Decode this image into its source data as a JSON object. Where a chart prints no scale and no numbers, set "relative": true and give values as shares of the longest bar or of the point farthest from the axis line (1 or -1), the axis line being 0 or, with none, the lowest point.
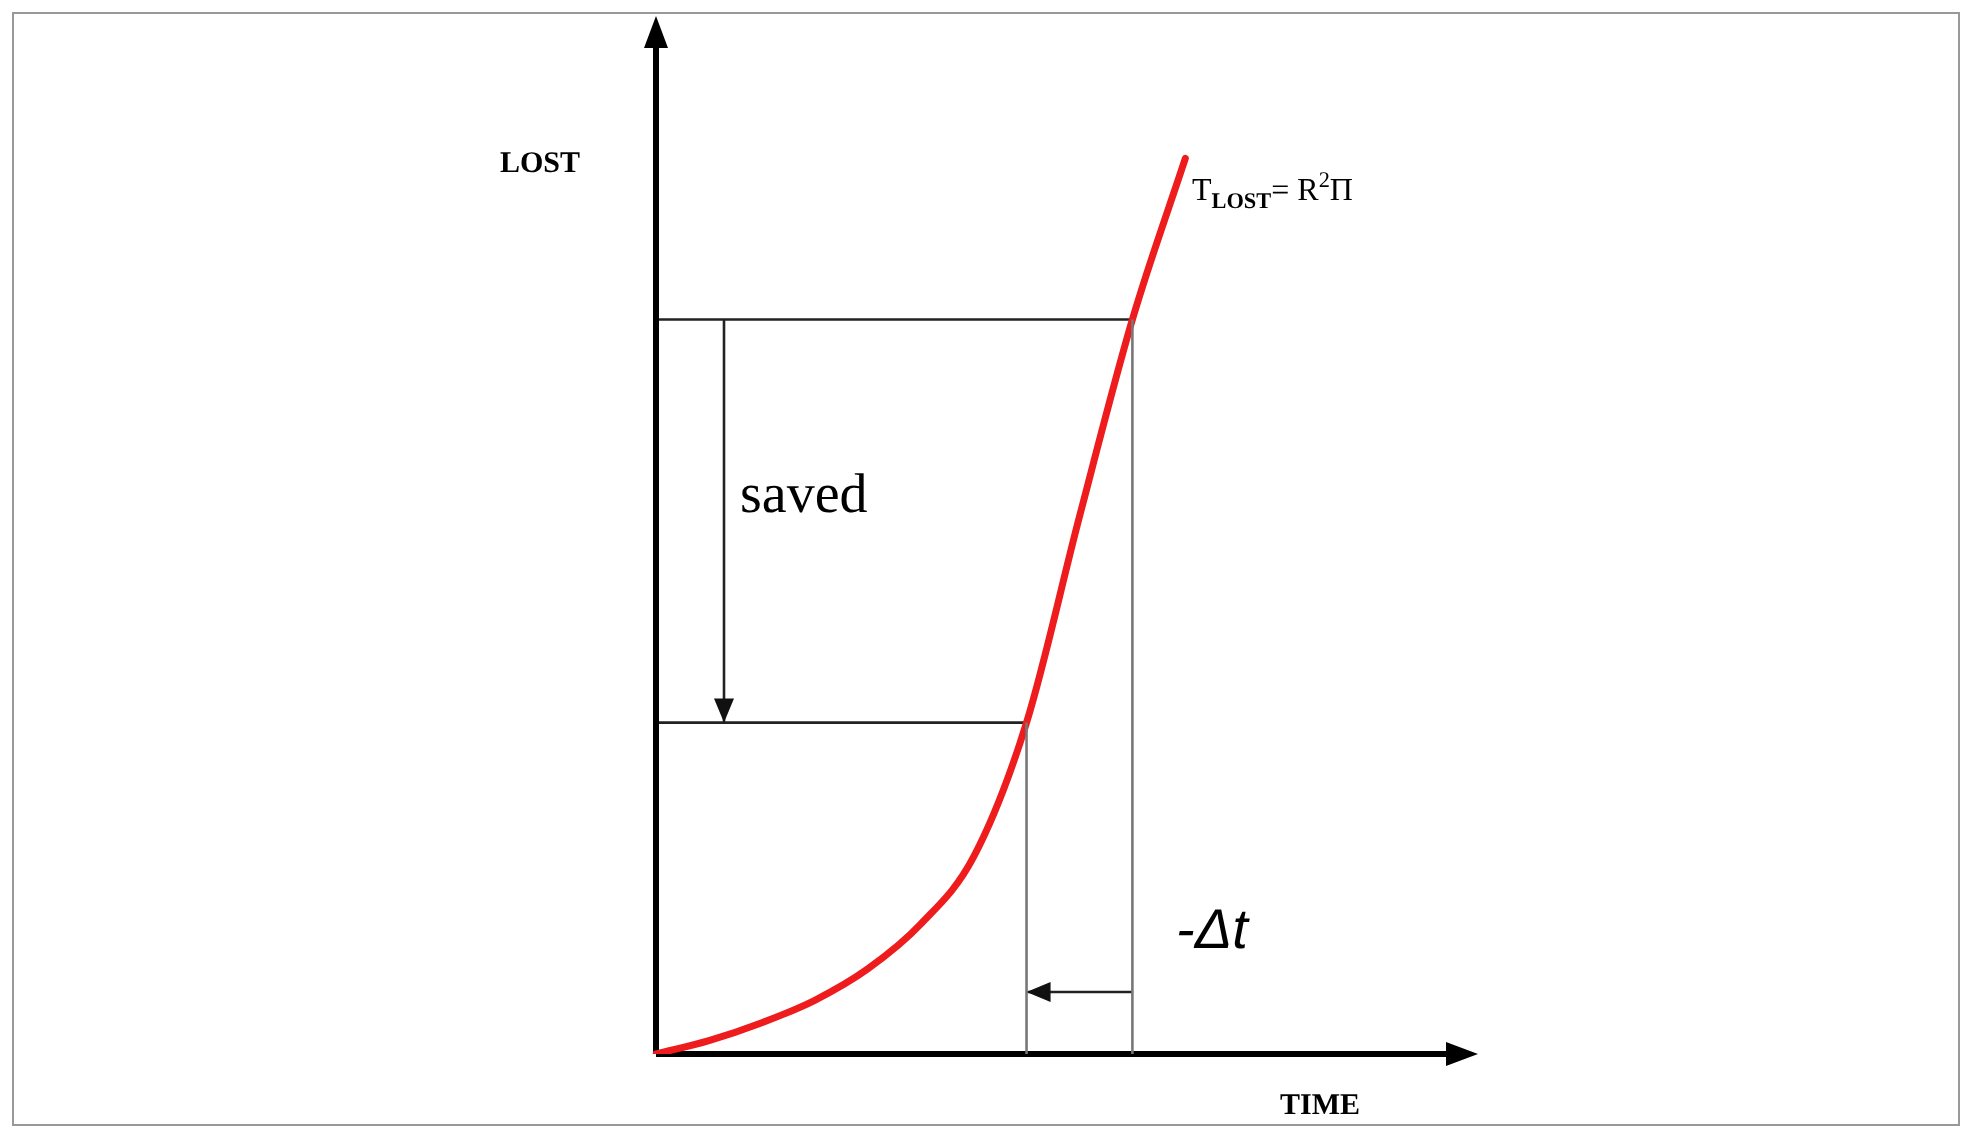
{
  "chart_data": {
    "type": "line",
    "relative": true,
    "xlabel": "TIME",
    "ylabel": "LOST",
    "categories": [
      null,
      null,
      null,
      null,
      null,
      null,
      null,
      null,
      null,
      null,
      null,
      null,
      null,
      null,
      null,
      null
    ],
    "tick_labels": false,
    "legend": false,
    "marker": "none",
    "line_style": "solid",
    "series": [
      {
        "color": "#ee1c1c",
        "values": [
          0,
          0.015,
          0.035,
          0.06,
          0.095,
          0.145,
          0.22,
          0.37,
          0.6,
          0.82,
          1.0,
          null,
          null,
          null,
          null,
          null
        ]
      }
    ],
    "ref_lines": [
      {
        "axis": "y",
        "value": 0.82,
        "color": "#222222"
      },
      {
        "axis": "y",
        "value": 0.37,
        "color": "#222222"
      }
    ],
    "annotations": [
      "T$_{LOST}$= R$^{2}$Π",
      "saved",
      "-Δt"
    ]
  }
}
